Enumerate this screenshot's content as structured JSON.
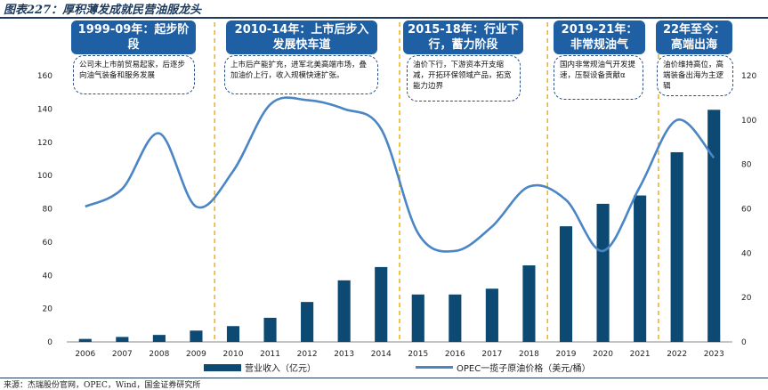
{
  "figure_title": "图表227：厚积薄发成就民营油服龙头",
  "source": "来源：杰瑞股份官网，OPEC，Wind，国金证券研究所",
  "colors": {
    "bar": "#0c4a74",
    "line": "#4a86c5",
    "stage_box": "#1f5fa4",
    "divider": "#f2b51c",
    "note_border": "#2a4f85"
  },
  "stages": [
    {
      "label": "1999-09年：起步阶段",
      "note": "公司未上市前贸易起家，后逐步向油气装备和服务发展"
    },
    {
      "label": "2010-14年：上市后步入发展快车道",
      "note": "上市后产能扩充，进军北美高端市场，叠加油价上行，收入规模快速扩张。"
    },
    {
      "label": "2015-18年：行业下行，蓄力阶段",
      "note": "油价下行，下游资本开支缩减，开拓环保领域产品，拓宽能力边界"
    },
    {
      "label": "2019-21年：非常规油气",
      "note": "国内非常规油气开发提速，压裂设备贡献α"
    },
    {
      "label": "22年至今：高端出海",
      "note": "油价维持高位，高端装备出海为主逻辑"
    }
  ],
  "chart_data": {
    "type": "bar+line",
    "categories": [
      "2006",
      "2007",
      "2008",
      "2009",
      "2010",
      "2011",
      "2012",
      "2013",
      "2014",
      "2015",
      "2016",
      "2017",
      "2018",
      "2019",
      "2020",
      "2021",
      "2022",
      "2023"
    ],
    "series": [
      {
        "name": "营业收入（亿元）",
        "type": "bar",
        "axis": "left",
        "values": [
          1.8,
          3.0,
          4.2,
          6.8,
          9.5,
          14.5,
          24,
          37,
          45,
          28.5,
          28.5,
          32,
          46,
          69.5,
          83,
          88,
          114,
          139.5
        ]
      },
      {
        "name": "OPEC一揽子原油价格（美元/桶）",
        "type": "line",
        "axis": "right",
        "values": [
          61,
          69,
          94,
          61,
          77,
          107,
          109,
          105,
          96,
          49,
          41,
          52,
          70,
          64,
          41,
          70,
          100,
          83
        ]
      }
    ],
    "y_left": {
      "min": 0,
      "max": 160,
      "ticks": [
        "0",
        "20",
        "40",
        "60",
        "80",
        "100",
        "120",
        "140",
        "160"
      ]
    },
    "y_right": {
      "min": 0,
      "max": 120,
      "ticks": [
        "0",
        "20",
        "40",
        "60",
        "80",
        "100",
        "120"
      ]
    },
    "dividers_after_category": [
      "2009",
      "2014",
      "2018",
      "2021"
    ],
    "legend": [
      "营业收入（亿元）",
      "OPEC一揽子原油价格（美元/桶）"
    ]
  }
}
